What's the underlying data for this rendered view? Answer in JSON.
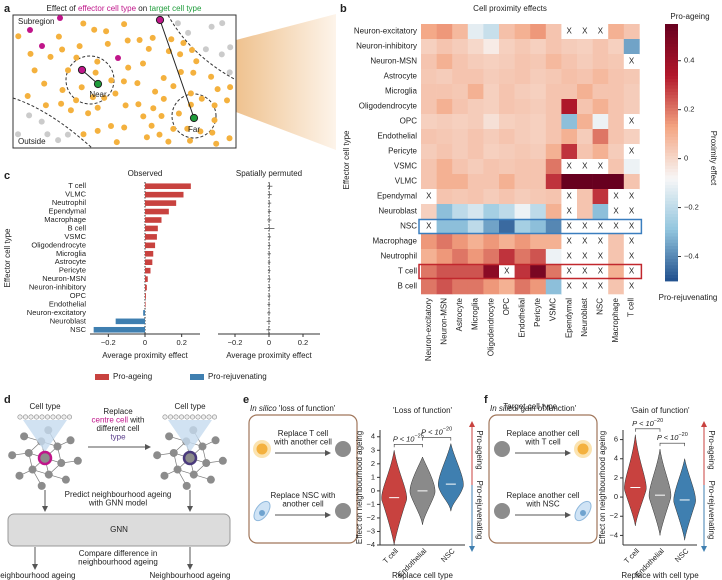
{
  "panel_labels": [
    "a",
    "b",
    "c",
    "d",
    "e",
    "f"
  ],
  "panel_a": {
    "title": [
      "Effect of ",
      "effector cell type",
      " on ",
      "target cell type"
    ],
    "title_colors": [
      "#222222",
      "#c0158a",
      "#222222",
      "#1e9c3a"
    ],
    "subregion": "Subregion",
    "near": "Near",
    "far": "Far",
    "outside": "Outside"
  },
  "panel_d": {
    "cell_type": [
      "Cell type",
      "Cell type"
    ],
    "replace_lines": [
      [
        "Replace"
      ],
      [
        "centre cell",
        " with"
      ],
      [
        "different cell"
      ],
      [
        "type"
      ]
    ],
    "replace_colors": [
      [
        "#222222"
      ],
      [
        "#c0158a",
        "#222222"
      ],
      [
        "#222222"
      ],
      [
        "#5b3f8c"
      ]
    ],
    "predict_lines": [
      "Predict neighbourhood ageing",
      "with GNN model"
    ],
    "model": "GNN",
    "compare_lines": [
      "Compare difference in",
      "neighbourhood ageing"
    ],
    "outputs": [
      "Neighbourhood ageing",
      "Neighbourhood ageing"
    ],
    "output_colors": [
      "#c0158a",
      "#5b3f8c"
    ]
  },
  "panel_e": {
    "header": [
      "In silico",
      " 'loss of function'"
    ],
    "box_texts": [
      [
        "Replace T cell",
        "with another cell"
      ],
      [
        "Replace NSC with",
        "another cell"
      ]
    ]
  },
  "panel_f": {
    "header": [
      "In silico",
      " 'gain of function'"
    ],
    "box_texts": [
      [
        "Replace another cell",
        "with T cell"
      ],
      [
        "Replace another cell",
        "with NSC"
      ]
    ]
  },
  "chart_data": [
    {
      "type": "heatmap",
      "title": "Cell proximity effects",
      "xlabel": "Target cell type",
      "ylabel": "Effector cell type",
      "rows": [
        "Neuron-excitatory",
        "Neuron-inhibitory",
        "Neuron-MSN",
        "Astrocyte",
        "Microglia",
        "Oligodendrocyte",
        "OPC",
        "Endothelial",
        "Pericyte",
        "VSMC",
        "VLMC",
        "Ependymal",
        "Neuroblast",
        "NSC",
        "Macrophage",
        "Neutrophil",
        "T cell",
        "B cell"
      ],
      "columns": [
        "Neuron-excitatory",
        "Neuron-MSN",
        "Astrocyte",
        "Microglia",
        "Oligodendrocyte",
        "OPC",
        "Endothelial",
        "Pericyte",
        "VSMC",
        "Ependymal",
        "Neuroblast",
        "NSC",
        "Macrophage",
        "T cell"
      ],
      "values": [
        [
          0.12,
          0.15,
          0.08,
          -0.12,
          -0.18,
          0.06,
          0.1,
          0.15,
          0.05,
          null,
          null,
          null,
          0.1,
          0.05
        ],
        [
          0.02,
          0.05,
          0.03,
          0.0,
          -0.05,
          0.02,
          0.04,
          0.02,
          0.05,
          0.03,
          0.02,
          0.05,
          0.02,
          -0.35
        ],
        [
          0.05,
          0.1,
          0.05,
          0.03,
          0.02,
          0.03,
          0.05,
          0.04,
          0.08,
          0.05,
          0.03,
          0.05,
          0.04,
          null
        ],
        [
          0.04,
          0.03,
          0.05,
          0.05,
          0.03,
          0.04,
          0.05,
          0.03,
          0.04,
          0.06,
          0.05,
          0.08,
          0.05,
          0.04
        ],
        [
          0.05,
          0.05,
          0.04,
          0.1,
          0.02,
          0.05,
          0.03,
          0.02,
          0.05,
          0.05,
          0.1,
          0.05,
          0.05,
          0.03
        ],
        [
          0.05,
          0.1,
          0.05,
          0.03,
          0.02,
          0.05,
          0.04,
          0.03,
          0.05,
          0.35,
          0.05,
          0.1,
          0.05,
          0.03
        ],
        [
          0.02,
          0.03,
          0.02,
          0.03,
          -0.02,
          0.02,
          0.03,
          0.02,
          0.05,
          -0.3,
          0.1,
          -0.1,
          0.05,
          null
        ],
        [
          0.05,
          0.04,
          0.03,
          0.05,
          0.03,
          0.05,
          0.03,
          0.02,
          0.05,
          0.1,
          0.03,
          0.2,
          0.05,
          0.02
        ],
        [
          0.03,
          0.05,
          0.03,
          0.05,
          0.02,
          0.03,
          0.04,
          0.03,
          0.1,
          0.3,
          0.05,
          0.1,
          0.03,
          null
        ],
        [
          0.05,
          0.1,
          0.05,
          0.03,
          0.05,
          0.04,
          0.05,
          0.05,
          0.2,
          null,
          null,
          null,
          0.05,
          -0.1
        ],
        [
          0.05,
          0.1,
          0.1,
          0.05,
          0.05,
          0.1,
          0.05,
          0.05,
          0.3,
          0.55,
          0.55,
          0.55,
          0.55,
          0.05
        ],
        [
          null,
          0.05,
          0.04,
          0.05,
          0.03,
          0.05,
          0.03,
          0.04,
          0.05,
          null,
          0.05,
          0.3,
          null,
          null
        ],
        [
          0.02,
          -0.3,
          -0.2,
          -0.15,
          -0.25,
          -0.2,
          -0.1,
          -0.2,
          0.1,
          null,
          0.05,
          -0.3,
          null,
          null
        ],
        [
          null,
          -0.3,
          -0.3,
          -0.2,
          -0.35,
          -0.45,
          -0.25,
          -0.3,
          -0.4,
          null,
          null,
          null,
          null,
          null
        ],
        [
          0.15,
          0.2,
          0.15,
          0.1,
          0.15,
          0.1,
          0.15,
          0.1,
          0.1,
          null,
          null,
          null,
          0.05,
          null
        ],
        [
          0.1,
          0.15,
          0.2,
          0.15,
          0.2,
          0.3,
          0.2,
          0.25,
          -0.1,
          null,
          null,
          null,
          0.05,
          null
        ],
        [
          0.2,
          0.25,
          0.25,
          0.25,
          0.45,
          null,
          0.3,
          0.5,
          0.2,
          null,
          null,
          null,
          0.1,
          null
        ],
        [
          0.2,
          0.25,
          0.2,
          0.2,
          0.15,
          0.1,
          0.2,
          0.15,
          -0.3,
          null,
          null,
          null,
          0.05,
          null
        ]
      ],
      "missing_label": "X",
      "clim": [
        -0.5,
        0.55
      ],
      "cticks": [
        {
          "value": -0.4,
          "label": "−0.4"
        },
        {
          "value": -0.2,
          "label": "−0.2"
        },
        0,
        0.2,
        0.4
      ],
      "colormap": [
        "#1f4e8c",
        "#92c5de",
        "#f7f7f7",
        "#f4a582",
        "#b2182b",
        "#67001f"
      ],
      "colorbar_label": "Proximity effect",
      "colorbar_ends": [
        "Pro-ageing",
        "Pro-rejuvenating"
      ],
      "highlights": [
        {
          "row": "NSC",
          "color": "#3a7ebf"
        },
        {
          "row": "T cell",
          "color": "#c1272d"
        }
      ]
    },
    {
      "type": "barh",
      "title": "Observed",
      "xlabel": "Average proximity effect",
      "ylabel": "Effector cell type",
      "categories": [
        "T cell",
        "VLMC",
        "Neutrophil",
        "Ependymal",
        "Macrophage",
        "B cell",
        "VSMC",
        "Oligodendrocyte",
        "Microglia",
        "Astrocyte",
        "Pericyte",
        "Neuron-MSN",
        "Neuron-inhibitory",
        "OPC",
        "Endothelial",
        "Neuron-excitatory",
        "Neuroblast",
        "NSC"
      ],
      "values": [
        0.25,
        0.21,
        0.17,
        0.13,
        0.09,
        0.07,
        0.065,
        0.055,
        0.045,
        0.04,
        0.03,
        0.015,
        0.01,
        0.005,
        0.003,
        -0.01,
        -0.16,
        -0.28
      ],
      "xlim": [
        -0.3,
        0.3
      ],
      "xticks": [
        {
          "value": -0.2,
          "label": "−0.2"
        },
        0,
        0.2
      ],
      "legend": [
        {
          "name": "Pro-ageing",
          "color": "#c8423f"
        },
        {
          "name": "Pro-rejuvenating",
          "color": "#3f7fb0"
        }
      ]
    },
    {
      "type": "barh",
      "title": "Spatially permuted",
      "xlabel": "Average proximity effect",
      "values": [
        0.005,
        0.004,
        0.003,
        0.003,
        0.002,
        0.002,
        0.002,
        0.001,
        0.001,
        0.001,
        0.001,
        0.0,
        0.0,
        0.0,
        -0.001,
        -0.001,
        -0.002,
        -0.003
      ],
      "errors": [
        0.015,
        0.012,
        0.01,
        0.01,
        0.012,
        0.03,
        0.01,
        0.008,
        0.01,
        0.008,
        0.008,
        0.01,
        0.008,
        0.008,
        0.008,
        0.01,
        0.012,
        0.012
      ],
      "color": "#555555",
      "xlim": [
        -0.3,
        0.3
      ],
      "xticks": [
        {
          "value": -0.2,
          "label": "−0.2"
        },
        0,
        0.2
      ]
    },
    {
      "type": "violin",
      "title": "'Loss of function'",
      "xlabel": "Replace cell type",
      "ylabel": "Effect on neighbourhood ageing",
      "categories": [
        "T cell",
        "Endothelial",
        "NSC"
      ],
      "colors": [
        "#c8423f",
        "#8a8a8a",
        "#3f7fb0"
      ],
      "medians": [
        -0.5,
        0.0,
        0.5
      ],
      "mins": [
        -4.0,
        -2.5,
        -1.5
      ],
      "maxs": [
        3.0,
        2.5,
        3.5
      ],
      "ylim": [
        -4,
        4.5
      ],
      "yticks": [
        {
          "value": -4,
          "label": "−4"
        },
        {
          "value": -3,
          "label": "−3"
        },
        {
          "value": -2,
          "label": "−2"
        },
        {
          "value": -1,
          "label": "−1"
        },
        0,
        1,
        2,
        3,
        4
      ],
      "annotations": [
        {
          "text": "P < 10",
          "exponent": "−25",
          "from": "T cell",
          "to": "Endothelial"
        },
        {
          "text": "P < 10",
          "exponent": "−20",
          "from": "Endothelial",
          "to": "NSC"
        }
      ],
      "arrow_labels": [
        "Pro-ageing",
        "Pro-rejuvenating"
      ]
    },
    {
      "type": "violin",
      "title": "'Gain of function'",
      "xlabel": "Replace with cell type",
      "ylabel": "Effect on neighbourhood ageing",
      "categories": [
        "T cell",
        "Endothelial",
        "NSC"
      ],
      "colors": [
        "#c8423f",
        "#8a8a8a",
        "#3f7fb0"
      ],
      "medians": [
        1.0,
        0.2,
        -0.3
      ],
      "mins": [
        -3.0,
        -4.0,
        -4.5
      ],
      "maxs": [
        6.5,
        5.0,
        4.0
      ],
      "ylim": [
        -5,
        7
      ],
      "yticks": [
        {
          "value": -4,
          "label": "−4"
        },
        {
          "value": -2,
          "label": "−2"
        },
        0,
        2,
        4,
        6
      ],
      "annotations": [
        {
          "text": "P < 10",
          "exponent": "−20",
          "from": "T cell",
          "to": "Endothelial"
        },
        {
          "text": "P < 10",
          "exponent": "−20",
          "from": "Endothelial",
          "to": "NSC"
        }
      ],
      "arrow_labels": [
        "Pro-ageing",
        "Pro-rejuvenating"
      ]
    }
  ]
}
